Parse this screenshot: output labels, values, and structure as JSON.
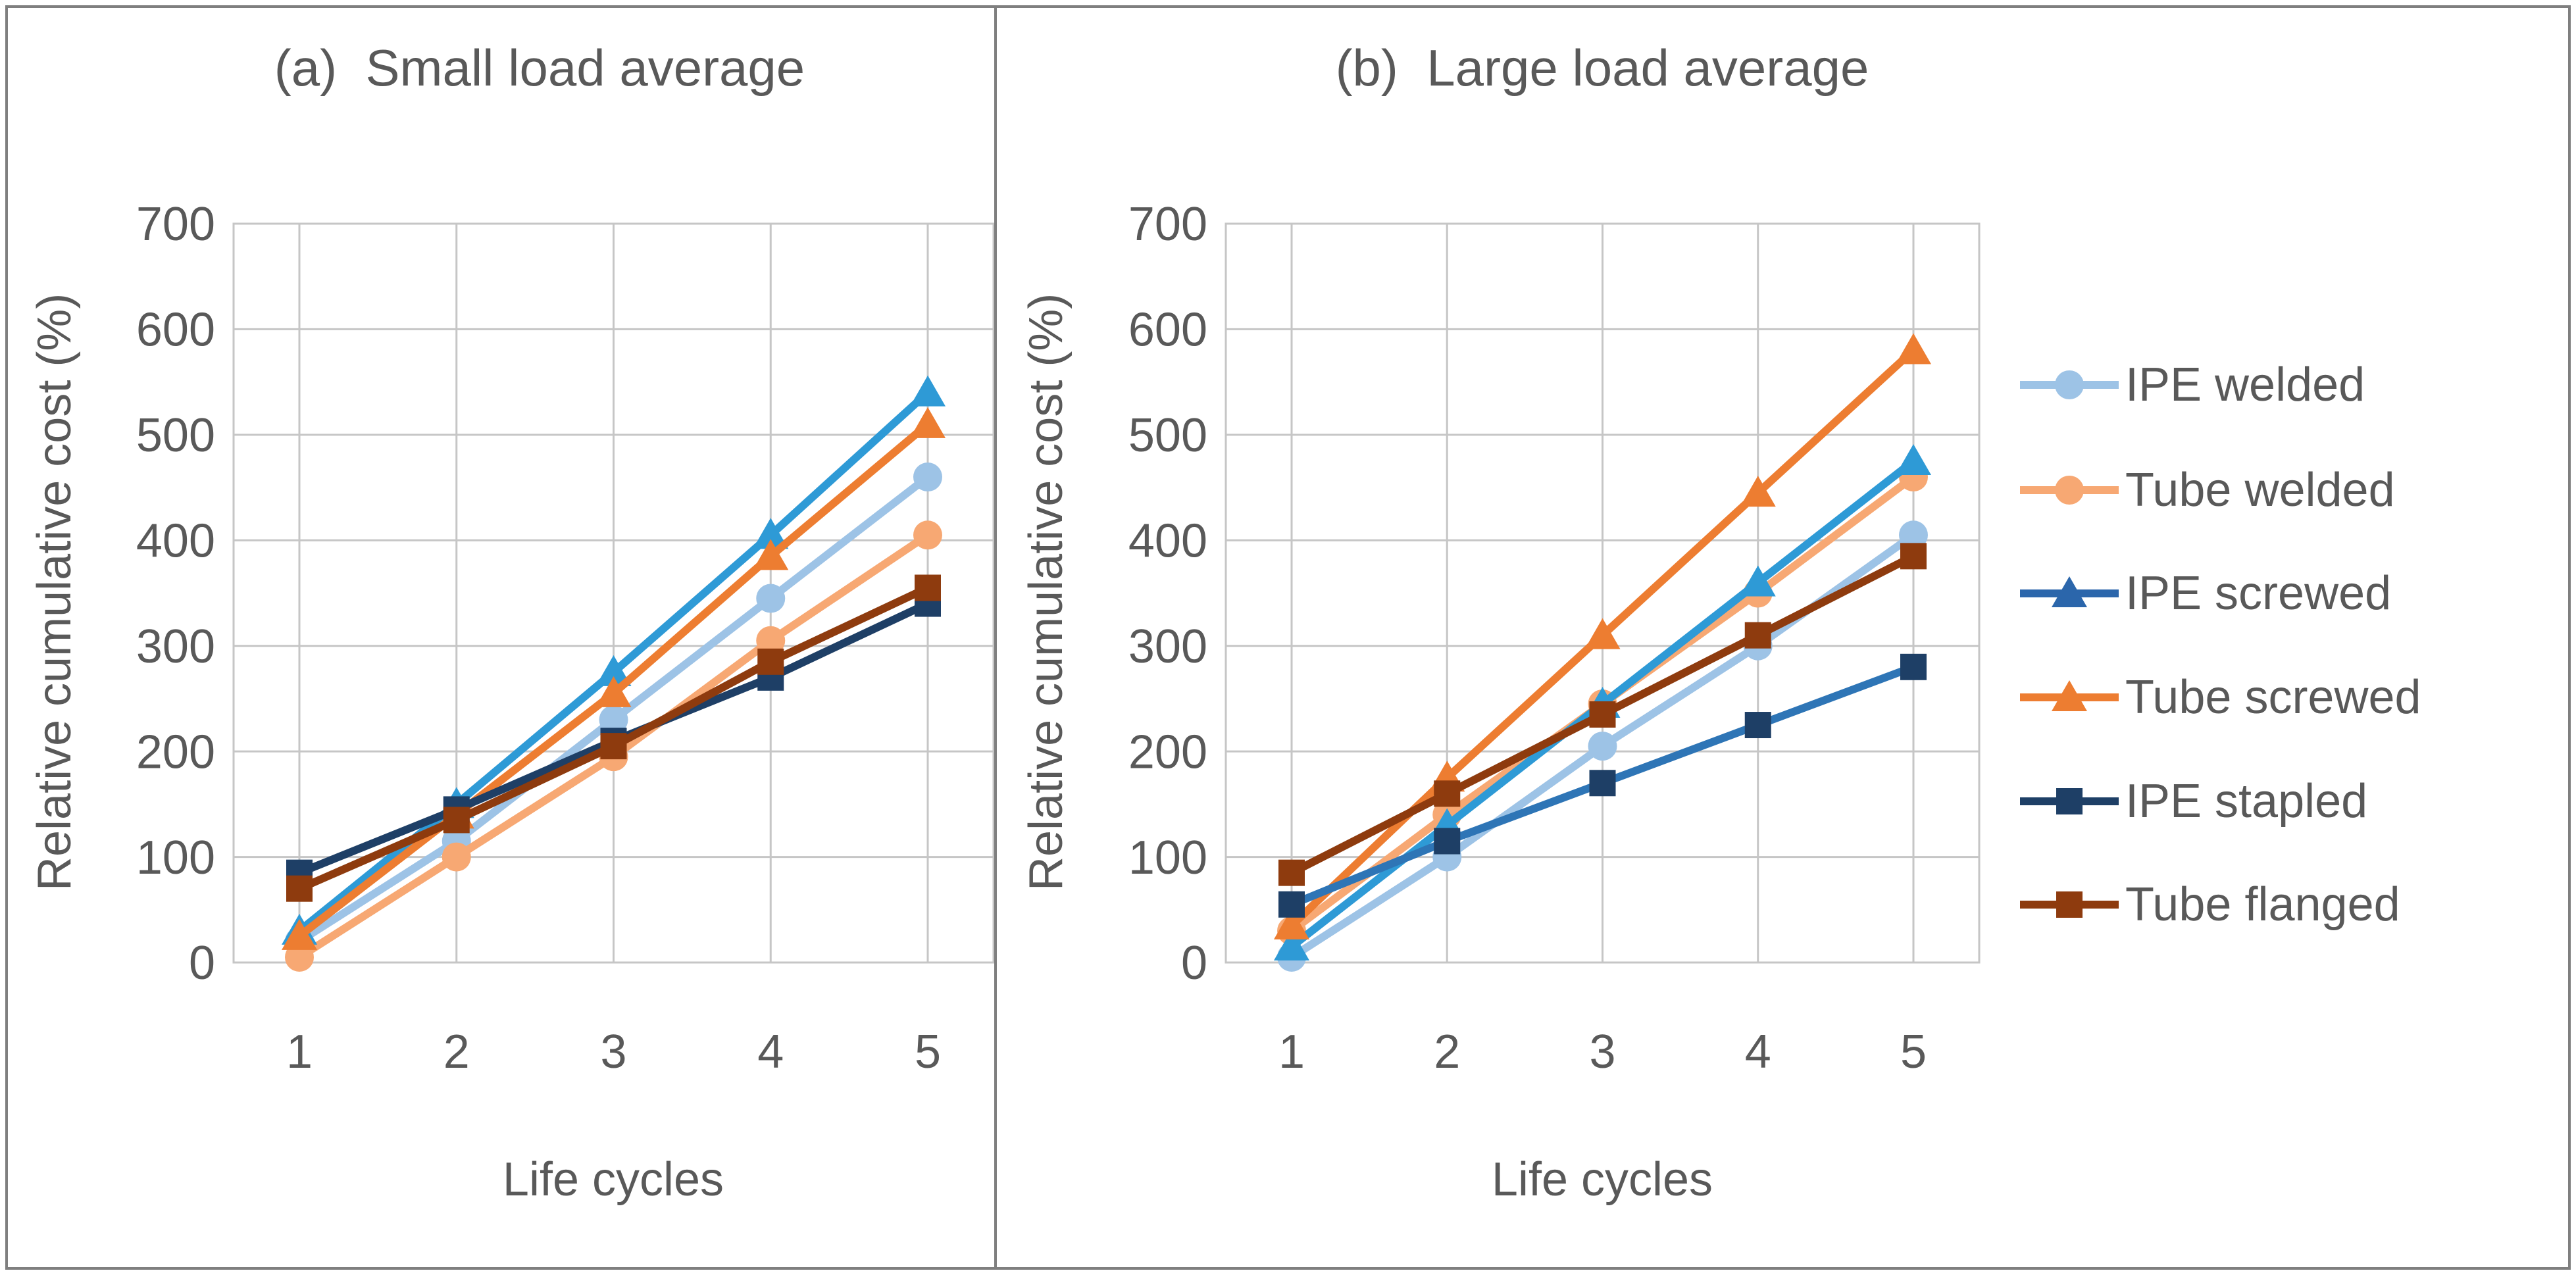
{
  "figure": {
    "background": "#ffffff",
    "border_color": "#7f7f7f",
    "text_color": "#595959",
    "grid_color": "#c6c6c6"
  },
  "panels": [
    {
      "title": "(a)  Small load average",
      "y_axis_title": "Relative cumulative cost (%)",
      "x_axis_title": "Life cycles"
    },
    {
      "title": "(b)  Large load average",
      "y_axis_title": "Relative cumulative cost (%)",
      "x_axis_title": "Life cycles"
    }
  ],
  "series_style": {
    "IPE welded": {
      "marker": "circle",
      "color": "#9dc3e6"
    },
    "Tube welded": {
      "marker": "circle",
      "color": "#f7a873"
    },
    "IPE screwed": {
      "marker": "triangle",
      "color": "#2e9ad6",
      "legend_color": "#2b66ab"
    },
    "Tube screwed": {
      "marker": "triangle",
      "color": "#ed7d31"
    },
    "IPE stapled": {
      "marker": "square",
      "color": "#1e3f66"
    },
    "Tube flanged": {
      "marker": "square",
      "color": "#8e3b0e"
    }
  },
  "legend": {
    "position": "right",
    "items": [
      {
        "label": "IPE welded"
      },
      {
        "label": "Tube welded"
      },
      {
        "label": "IPE screwed"
      },
      {
        "label": "Tube screwed"
      },
      {
        "label": "IPE stapled"
      },
      {
        "label": "Tube flanged"
      }
    ]
  },
  "chart_data": [
    {
      "type": "line",
      "panel": "a",
      "title": "(a) Small load average",
      "xlabel": "Life cycles",
      "ylabel": "Relative cumulative cost (%)",
      "x": [
        1,
        2,
        3,
        4,
        5
      ],
      "x_tick_labels": [
        "1",
        "2",
        "3",
        "4",
        "5"
      ],
      "y_tick_labels": [
        "0",
        "100",
        "200",
        "300",
        "400",
        "500",
        "600",
        "700"
      ],
      "ylim": [
        0,
        700
      ],
      "y_step": 100,
      "grid": true,
      "series": [
        {
          "name": "IPE welded",
          "values": [
            20,
            115,
            230,
            345,
            460
          ]
        },
        {
          "name": "Tube welded",
          "values": [
            5,
            100,
            195,
            305,
            405
          ]
        },
        {
          "name": "IPE screwed",
          "values": [
            30,
            150,
            275,
            405,
            540
          ]
        },
        {
          "name": "Tube screwed",
          "values": [
            25,
            140,
            255,
            385,
            510
          ]
        },
        {
          "name": "IPE stapled",
          "values": [
            85,
            145,
            210,
            270,
            340
          ]
        },
        {
          "name": "Tube flanged",
          "values": [
            70,
            135,
            205,
            285,
            355
          ]
        }
      ]
    },
    {
      "type": "line",
      "panel": "b",
      "title": "(b) Large load average",
      "xlabel": "Life cycles",
      "ylabel": "Relative cumulative cost (%)",
      "x": [
        1,
        2,
        3,
        4,
        5
      ],
      "x_tick_labels": [
        "1",
        "2",
        "3",
        "4",
        "5"
      ],
      "y_tick_labels": [
        "0",
        "100",
        "200",
        "300",
        "400",
        "500",
        "600",
        "700"
      ],
      "ylim": [
        0,
        700
      ],
      "y_step": 100,
      "grid": true,
      "series": [
        {
          "name": "IPE welded",
          "values": [
            5,
            100,
            205,
            300,
            405
          ]
        },
        {
          "name": "Tube welded",
          "values": [
            30,
            140,
            245,
            350,
            460
          ]
        },
        {
          "name": "IPE screwed",
          "values": [
            15,
            130,
            245,
            360,
            475
          ]
        },
        {
          "name": "Tube screwed",
          "values": [
            35,
            175,
            310,
            445,
            580
          ]
        },
        {
          "name": "IPE stapled",
          "values": [
            55,
            115,
            170,
            225,
            280
          ],
          "line_color": "#2e75b6"
        },
        {
          "name": "Tube flanged",
          "values": [
            85,
            160,
            235,
            310,
            385
          ]
        }
      ]
    }
  ]
}
